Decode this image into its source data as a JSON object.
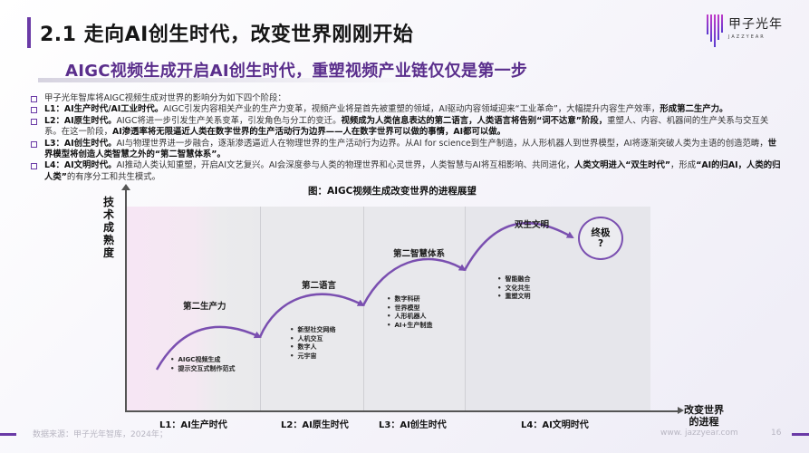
{
  "header": {
    "title": "2.1 走向AI创生时代，改变世界刚刚开始",
    "subtitle": "AIGC视频生成开启AI创生时代，重塑视频产业链仅仅是第一步",
    "logo": {
      "cn": "甲子光年",
      "en": "JAZZYEAR"
    }
  },
  "bullets": [
    {
      "segments": [
        {
          "text": "甲子光年智库将AIGC视频生成对世界的影响分为如下四个阶段：",
          "bold": false
        }
      ]
    },
    {
      "segments": [
        {
          "text": "L1：AI生产时代/AI工业时代。",
          "bold": true
        },
        {
          "text": "AIGC引发内容相关产业的生产力变革，视频产业将是首先被重塑的领域，AI驱动内容领域迎来“工业革命”，大幅提升内容生产效率，",
          "bold": false
        },
        {
          "text": "形成第二生产力。",
          "bold": true
        }
      ]
    },
    {
      "segments": [
        {
          "text": "L2：AI原生时代。",
          "bold": true
        },
        {
          "text": "AIGC将进一步引发生产关系变革，引发角色与分工的变迁。",
          "bold": false
        },
        {
          "text": "视频成为人类信息表达的第二语言，人类语言将告别“词不达意”阶段，",
          "bold": true
        },
        {
          "text": "重塑人、内容、机器间的生产关系与交互关系。在这一阶段，",
          "bold": false
        },
        {
          "text": "AI渗透率将无限逼近人类在数字世界的生产活动行为边界——人在数字世界可以做的事情，AI都可以做。",
          "bold": true
        }
      ]
    },
    {
      "segments": [
        {
          "text": "L3：AI创生时代。",
          "bold": true
        },
        {
          "text": "AI与物理世界进一步融合，逐渐渗透逼近人在物理世界的生产活动行为边界。从AI for science到生产制造，从人形机器人到世界模型，AI将逐渐突破人类为主语的创造范畴，",
          "bold": false
        },
        {
          "text": "世界模型将创造人类智慧之外的“第二智慧体系”。",
          "bold": true
        }
      ]
    },
    {
      "segments": [
        {
          "text": "L4：AI文明时代。",
          "bold": true
        },
        {
          "text": "AI推动人类认知重塑，开启AI文艺复兴。AI会深度参与人类的物理世界和心灵世界，人类智慧与AI将互相影响、共同进化，",
          "bold": false
        },
        {
          "text": "人类文明进入“双生时代”",
          "bold": true
        },
        {
          "text": "，形成",
          "bold": false
        },
        {
          "text": "“AI的归AI，人类的归人类”",
          "bold": true
        },
        {
          "text": "的有序分工和共生模式。",
          "bold": false
        }
      ]
    }
  ],
  "diagram": {
    "title": "图：AIGC视频生成改变世界的进程展望",
    "y_axis_label": "技术成熟度",
    "x_axis_label": "改变世界的进程",
    "stages": [
      {
        "label": "L1：AI生产时代",
        "milestone": "第二生产力",
        "items": [
          "AIGC视频生成",
          "提示交互式制作范式"
        ]
      },
      {
        "label": "L2：AI原生时代",
        "milestone": "第二语言",
        "items": [
          "新型社交网络",
          "人机交互",
          "数字人",
          "元宇宙"
        ]
      },
      {
        "label": "L3：AI创生时代",
        "milestone": "第二智慧体系",
        "items": [
          "数字科研",
          "世界模型",
          "人形机器人",
          "AI+生产制造"
        ]
      },
      {
        "label": "L4：AI文明时代",
        "milestone": "双生文明",
        "items": [
          "智能融合",
          "文化共生",
          "重塑文明"
        ]
      }
    ],
    "ultimate": {
      "line1": "终极",
      "line2": "?"
    },
    "colors": {
      "curve": "#7a4fb0",
      "stage1_bg": "#f6e6f4",
      "stage_bg": "#e9e9ec"
    }
  },
  "footer": {
    "source": "数据来源：甲子光年智库，2024年；",
    "url": "www. jazzyear.com",
    "page": "16"
  }
}
